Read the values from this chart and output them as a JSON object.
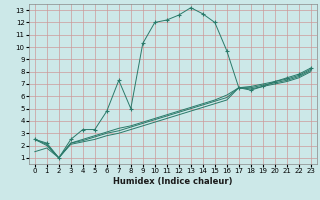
{
  "xlabel": "Humidex (Indice chaleur)",
  "bg_color": "#cce8e8",
  "grid_color": "#cc9999",
  "line_color": "#2a7a6a",
  "xlim": [
    -0.5,
    23.5
  ],
  "ylim": [
    0.5,
    13.5
  ],
  "xticks": [
    0,
    1,
    2,
    3,
    4,
    5,
    6,
    7,
    8,
    9,
    10,
    11,
    12,
    13,
    14,
    15,
    16,
    17,
    18,
    19,
    20,
    21,
    22,
    23
  ],
  "yticks": [
    1,
    2,
    3,
    4,
    5,
    6,
    7,
    8,
    9,
    10,
    11,
    12,
    13
  ],
  "curve1_x": [
    0,
    1,
    2,
    3,
    4,
    5,
    6,
    7,
    8,
    9,
    10,
    11,
    12,
    13,
    14,
    15,
    16,
    17,
    18,
    19,
    20,
    21,
    22,
    23
  ],
  "curve1_y": [
    2.5,
    2.2,
    1.0,
    2.5,
    3.3,
    3.3,
    4.8,
    7.3,
    5.0,
    10.3,
    12.0,
    12.2,
    12.6,
    13.2,
    12.7,
    12.0,
    9.7,
    6.7,
    6.5,
    6.8,
    7.2,
    7.5,
    7.8,
    8.3
  ],
  "curve2_x": [
    0,
    1,
    2,
    3,
    4,
    5,
    6,
    7,
    8,
    9,
    10,
    11,
    12,
    13,
    14,
    15,
    16,
    17,
    18,
    19,
    20,
    21,
    22,
    23
  ],
  "curve2_y": [
    2.5,
    2.1,
    1.0,
    2.2,
    2.5,
    2.8,
    3.1,
    3.4,
    3.6,
    3.9,
    4.2,
    4.5,
    4.8,
    5.1,
    5.4,
    5.7,
    6.1,
    6.7,
    6.8,
    7.0,
    7.2,
    7.4,
    7.7,
    8.2
  ],
  "curve3_x": [
    0,
    1,
    2,
    3,
    4,
    5,
    6,
    7,
    8,
    9,
    10,
    11,
    12,
    13,
    14,
    15,
    16,
    17,
    18,
    19,
    20,
    21,
    22,
    23
  ],
  "curve3_y": [
    2.5,
    2.0,
    1.0,
    2.2,
    2.4,
    2.7,
    3.0,
    3.2,
    3.5,
    3.8,
    4.1,
    4.4,
    4.7,
    5.0,
    5.3,
    5.6,
    5.9,
    6.7,
    6.7,
    6.9,
    7.1,
    7.3,
    7.6,
    8.1
  ],
  "curve4_x": [
    0,
    1,
    2,
    3,
    4,
    5,
    6,
    7,
    8,
    9,
    10,
    11,
    12,
    13,
    14,
    15,
    16,
    17,
    18,
    19,
    20,
    21,
    22,
    23
  ],
  "curve4_y": [
    1.5,
    1.8,
    1.0,
    2.1,
    2.3,
    2.5,
    2.8,
    3.0,
    3.3,
    3.6,
    3.9,
    4.2,
    4.5,
    4.8,
    5.1,
    5.4,
    5.7,
    6.7,
    6.6,
    6.8,
    7.0,
    7.2,
    7.5,
    8.0
  ]
}
